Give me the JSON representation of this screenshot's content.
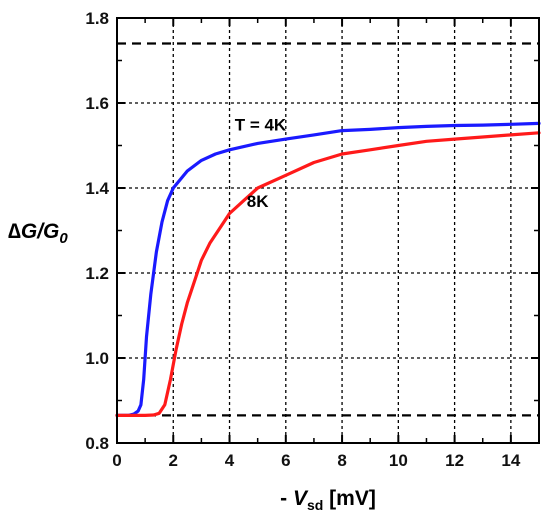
{
  "chart_data": {
    "type": "line",
    "xlabel_prefix": "- ",
    "xlabel_symbol": "V",
    "xlabel_subscript": "sd",
    "xlabel_unit": " [mV]",
    "ylabel_delta": "∆",
    "ylabel_main": "G/G",
    "ylabel_subscript": "0",
    "xlim": [
      0,
      15
    ],
    "ylim": [
      0.8,
      1.8
    ],
    "x_ticks": [
      0,
      2,
      4,
      6,
      8,
      10,
      12,
      14
    ],
    "y_ticks": [
      0.8,
      1.0,
      1.2,
      1.4,
      1.6,
      1.8
    ],
    "x_tick_labels": [
      "0",
      "2",
      "4",
      "6",
      "8",
      "10",
      "12",
      "14"
    ],
    "y_tick_labels": [
      "0.8",
      "1.0",
      "1.2",
      "1.4",
      "1.6",
      "1.8"
    ],
    "grid": true,
    "reference_lines": [
      0.865,
      1.74
    ],
    "series": [
      {
        "name": "T = 4K",
        "color": "#1a1aff",
        "points": [
          [
            0,
            0.865
          ],
          [
            0.4,
            0.865
          ],
          [
            0.6,
            0.868
          ],
          [
            0.75,
            0.875
          ],
          [
            0.85,
            0.89
          ],
          [
            0.95,
            0.95
          ],
          [
            1.05,
            1.05
          ],
          [
            1.2,
            1.15
          ],
          [
            1.4,
            1.25
          ],
          [
            1.6,
            1.32
          ],
          [
            1.8,
            1.37
          ],
          [
            2.0,
            1.4
          ],
          [
            2.5,
            1.44
          ],
          [
            3.0,
            1.465
          ],
          [
            3.5,
            1.48
          ],
          [
            4.0,
            1.49
          ],
          [
            5.0,
            1.505
          ],
          [
            6.0,
            1.515
          ],
          [
            7.0,
            1.525
          ],
          [
            8.0,
            1.535
          ],
          [
            9.0,
            1.538
          ],
          [
            10.0,
            1.542
          ],
          [
            11.0,
            1.545
          ],
          [
            12.0,
            1.547
          ],
          [
            13.0,
            1.548
          ],
          [
            14.0,
            1.55
          ],
          [
            15.0,
            1.552
          ]
        ]
      },
      {
        "name": "8K",
        "color": "#ff1a1a",
        "points": [
          [
            0,
            0.865
          ],
          [
            1.0,
            0.865
          ],
          [
            1.3,
            0.866
          ],
          [
            1.5,
            0.87
          ],
          [
            1.7,
            0.89
          ],
          [
            1.9,
            0.95
          ],
          [
            2.1,
            1.02
          ],
          [
            2.3,
            1.08
          ],
          [
            2.5,
            1.13
          ],
          [
            2.8,
            1.19
          ],
          [
            3.0,
            1.23
          ],
          [
            3.3,
            1.27
          ],
          [
            3.7,
            1.31
          ],
          [
            4.0,
            1.34
          ],
          [
            4.5,
            1.37
          ],
          [
            5.0,
            1.4
          ],
          [
            6.0,
            1.43
          ],
          [
            7.0,
            1.46
          ],
          [
            8.0,
            1.48
          ],
          [
            9.0,
            1.49
          ],
          [
            10.0,
            1.5
          ],
          [
            11.0,
            1.51
          ],
          [
            12.0,
            1.515
          ],
          [
            13.0,
            1.52
          ],
          [
            14.0,
            1.525
          ],
          [
            15.0,
            1.53
          ]
        ]
      }
    ],
    "annotations": [
      {
        "text": "T = 4K",
        "x": 5.1,
        "y": 1.535,
        "series": 0
      },
      {
        "text": "8K",
        "x": 5.0,
        "y": 1.355,
        "series": 1
      }
    ]
  }
}
